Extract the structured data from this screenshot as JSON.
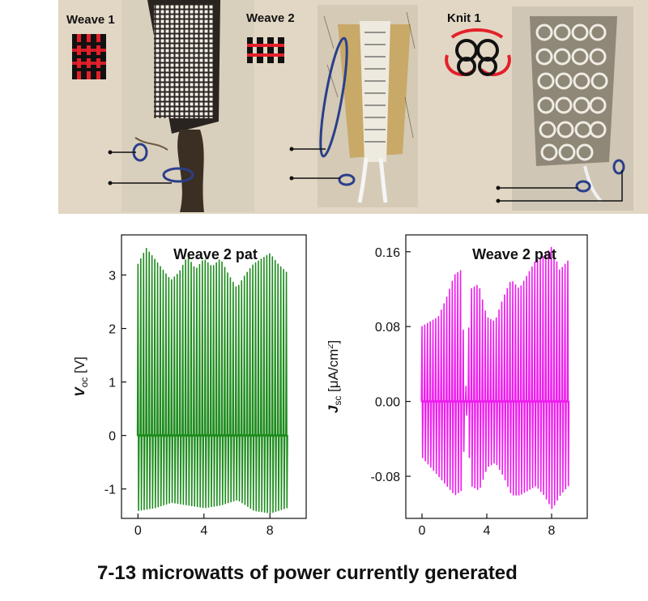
{
  "photos": {
    "labels": [
      "Weave 1",
      "Weave 2",
      "Knit 1"
    ],
    "background_color": "#e2d7c4",
    "icon_colors": {
      "red": "#e4202a",
      "black": "#111111",
      "electrode": "#2a3f8a"
    }
  },
  "chart_data": [
    {
      "type": "line",
      "annotation": "Weave 2 pat",
      "ylabel_main": "V",
      "ylabel_sub": "oc",
      "ylabel_unit": "[V]",
      "xlim": [
        -1,
        10.2
      ],
      "ylim": [
        -1.55,
        3.75
      ],
      "xticks": [
        0,
        4,
        8
      ],
      "yticks": [
        -1,
        0,
        1,
        2,
        3
      ],
      "ytick_labels": [
        "-1",
        "0",
        "1",
        "2",
        "3"
      ],
      "color": "#1e8c1e",
      "x_range": [
        0,
        9
      ],
      "pulse_count": 54,
      "peak_envelope": {
        "x": [
          0.0,
          0.5,
          1.0,
          1.5,
          2.0,
          2.5,
          3.0,
          3.5,
          4.0,
          4.5,
          5.0,
          5.5,
          6.0,
          6.5,
          7.0,
          7.5,
          8.0,
          8.5,
          9.0
        ],
        "y": [
          3.2,
          3.5,
          3.3,
          3.1,
          2.9,
          3.05,
          3.35,
          3.1,
          3.3,
          3.15,
          3.3,
          3.0,
          2.75,
          3.0,
          3.2,
          3.3,
          3.4,
          3.2,
          3.05
        ]
      },
      "trough_envelope": {
        "x": [
          0.0,
          1.0,
          2.0,
          3.0,
          4.0,
          5.0,
          6.0,
          7.0,
          8.0,
          9.0
        ],
        "y": [
          -1.4,
          -1.35,
          -1.25,
          -1.3,
          -1.35,
          -1.3,
          -1.2,
          -1.4,
          -1.45,
          -1.35
        ]
      }
    },
    {
      "type": "line",
      "annotation": "Weave 2 pat",
      "ylabel_main": "J",
      "ylabel_sub": "sc",
      "ylabel_unit": "[μA/cm",
      "ylabel_sup": "2",
      "ylabel_close": "]",
      "xlim": [
        -1,
        10.2
      ],
      "ylim": [
        -0.125,
        0.178
      ],
      "xticks": [
        0,
        4,
        8
      ],
      "yticks": [
        -0.08,
        0.0,
        0.08,
        0.16
      ],
      "ytick_labels": [
        "-0.08",
        "0.00",
        "0.08",
        "0.16"
      ],
      "color": "#ee1cee",
      "x_range": [
        0,
        9
      ],
      "pulse_count": 54,
      "peak_envelope": {
        "x": [
          0.0,
          0.5,
          1.0,
          1.5,
          2.0,
          2.4,
          2.7,
          3.0,
          3.5,
          4.0,
          4.5,
          5.0,
          5.5,
          6.0,
          6.5,
          7.0,
          7.5,
          8.0,
          8.5,
          9.0
        ],
        "y": [
          0.08,
          0.085,
          0.09,
          0.11,
          0.135,
          0.14,
          0.01,
          0.12,
          0.125,
          0.09,
          0.085,
          0.11,
          0.13,
          0.12,
          0.135,
          0.15,
          0.155,
          0.165,
          0.14,
          0.15
        ]
      },
      "trough_envelope": {
        "x": [
          0.0,
          0.5,
          1.0,
          1.5,
          2.0,
          2.4,
          2.7,
          3.0,
          3.5,
          4.0,
          4.5,
          5.0,
          5.5,
          6.0,
          6.5,
          7.0,
          7.5,
          8.0,
          8.5,
          9.0
        ],
        "y": [
          -0.06,
          -0.07,
          -0.08,
          -0.09,
          -0.1,
          -0.095,
          -0.01,
          -0.09,
          -0.095,
          -0.07,
          -0.065,
          -0.08,
          -0.1,
          -0.1,
          -0.095,
          -0.09,
          -0.1,
          -0.115,
          -0.1,
          -0.09
        ]
      }
    }
  ],
  "caption": "7-13 microwatts of power currently generated"
}
